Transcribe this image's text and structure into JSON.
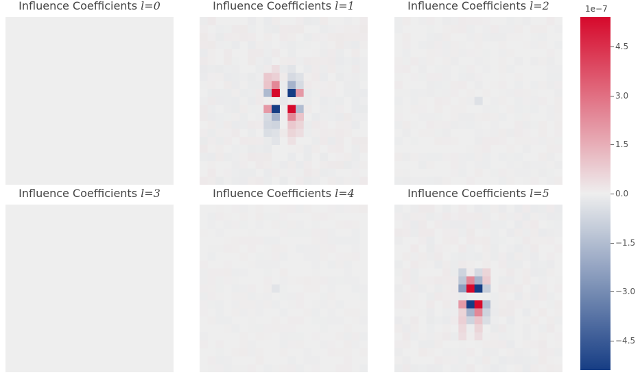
{
  "chart_data": {
    "type": "heatmap",
    "title_prefix": "Influence Coefficients",
    "title_var": "l",
    "panels": [
      {
        "l": "0"
      },
      {
        "l": "1"
      },
      {
        "l": "2"
      },
      {
        "l": "3"
      },
      {
        "l": "4"
      },
      {
        "l": "5"
      }
    ],
    "colorbar": {
      "exponent_label": "1e−7",
      "min": -5.4,
      "max": 5.4,
      "ticks": [
        {
          "value": 4.5,
          "label": "4.5"
        },
        {
          "value": 3.0,
          "label": "3.0"
        },
        {
          "value": 1.5,
          "label": "1.5"
        },
        {
          "value": 0.0,
          "label": "0.0"
        },
        {
          "value": -1.5,
          "label": "−1.5"
        },
        {
          "value": -3.0,
          "label": "−3.0"
        },
        {
          "value": -4.5,
          "label": "−4.5"
        }
      ],
      "colors": {
        "negative": "#163d84",
        "zero": "#eeeeee",
        "positive": "#d6092b"
      }
    },
    "grid": false
  }
}
